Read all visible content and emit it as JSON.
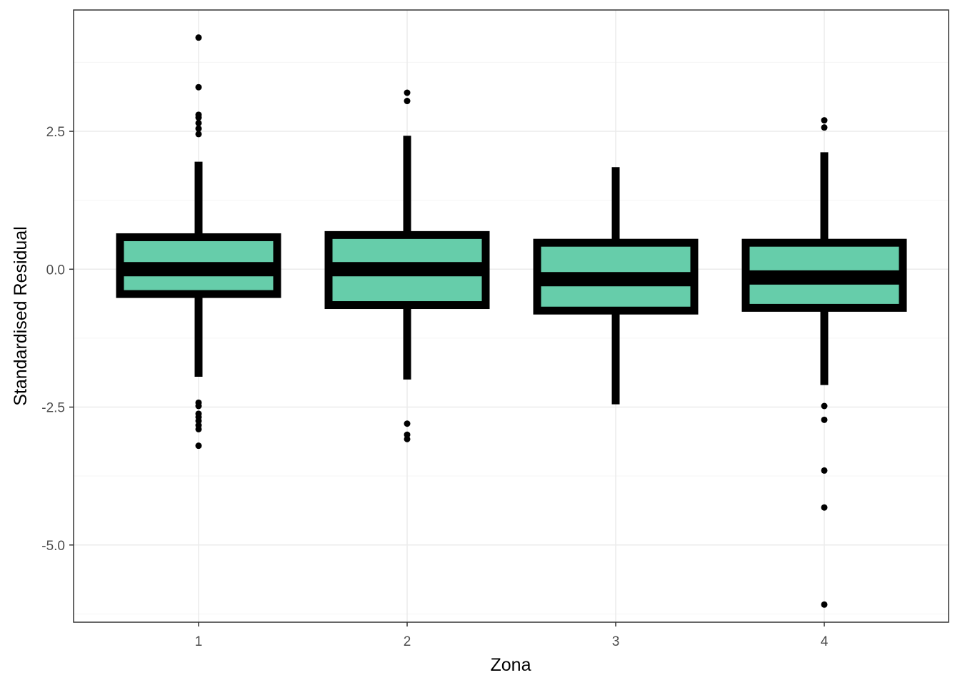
{
  "chart_data": {
    "type": "boxplot",
    "title": "",
    "xlabel": "Zona",
    "ylabel": "Standardised Residual",
    "categories": [
      "1",
      "2",
      "3",
      "4"
    ],
    "y_ticks": [
      -5.0,
      -2.5,
      0.0,
      2.5
    ],
    "y_tick_labels": [
      "-5.0",
      "-2.5",
      "0.0",
      "2.5"
    ],
    "ylim": [
      -6.4,
      4.7
    ],
    "grid": true,
    "legend": "none",
    "colors": {
      "box_fill": "#66CDAA",
      "box_line": "#000000",
      "grid_major": "#ebebeb",
      "grid_minor": "#f5f5f5"
    },
    "boxes": [
      {
        "category": "1",
        "whisker_low": -1.95,
        "q1": -0.45,
        "median": 0.0,
        "q3": 0.58,
        "whisker_high": 1.95,
        "outliers": [
          4.2,
          3.3,
          2.8,
          2.75,
          2.65,
          2.55,
          2.45,
          -2.42,
          -2.48,
          -2.62,
          -2.68,
          -2.75,
          -2.83,
          -2.9,
          -3.2
        ]
      },
      {
        "category": "2",
        "whisker_low": -2.0,
        "q1": -0.65,
        "median": 0.0,
        "q3": 0.62,
        "whisker_high": 2.42,
        "outliers": [
          3.2,
          3.05,
          -2.8,
          -3.0,
          -3.08
        ]
      },
      {
        "category": "3",
        "whisker_low": -2.45,
        "q1": -0.75,
        "median": -0.18,
        "q3": 0.48,
        "whisker_high": 1.85,
        "outliers": []
      },
      {
        "category": "4",
        "whisker_low": -2.1,
        "q1": -0.7,
        "median": -0.15,
        "q3": 0.48,
        "whisker_high": 2.12,
        "outliers": [
          2.7,
          2.57,
          -2.48,
          -2.73,
          -3.65,
          -4.32,
          -6.08
        ]
      }
    ]
  }
}
